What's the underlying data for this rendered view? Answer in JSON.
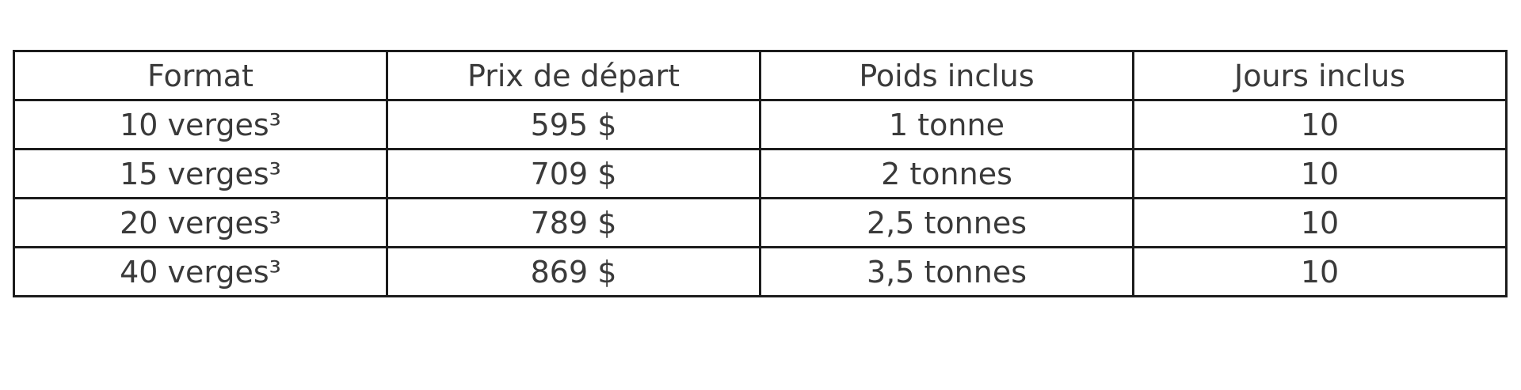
{
  "colors": {
    "background": "#ffffff",
    "border": "#1c1c1c",
    "text": "#3a3a3a"
  },
  "table": {
    "columns": [
      "Format",
      "Prix de départ",
      "Poids inclus",
      "Jours inclus"
    ],
    "rows": [
      [
        "10 verges³",
        "595 $",
        "1 tonne",
        "10"
      ],
      [
        "15 verges³",
        "709 $",
        "2 tonnes",
        "10"
      ],
      [
        "20 verges³",
        "789 $",
        "2,5 tonnes",
        "10"
      ],
      [
        "40 verges³",
        "869 $",
        "3,5 tonnes",
        "10"
      ]
    ]
  },
  "chart_data": {
    "type": "table",
    "columns": [
      "Format",
      "Prix de départ",
      "Poids inclus",
      "Jours inclus"
    ],
    "rows": [
      [
        "10 verges³",
        "595 $",
        "1 tonne",
        "10"
      ],
      [
        "15 verges³",
        "709 $",
        "2 tonnes",
        "10"
      ],
      [
        "20 verges³",
        "789 $",
        "2,5 tonnes",
        "10"
      ],
      [
        "40 verges³",
        "869 $",
        "3,5 tonnes",
        "10"
      ]
    ]
  }
}
